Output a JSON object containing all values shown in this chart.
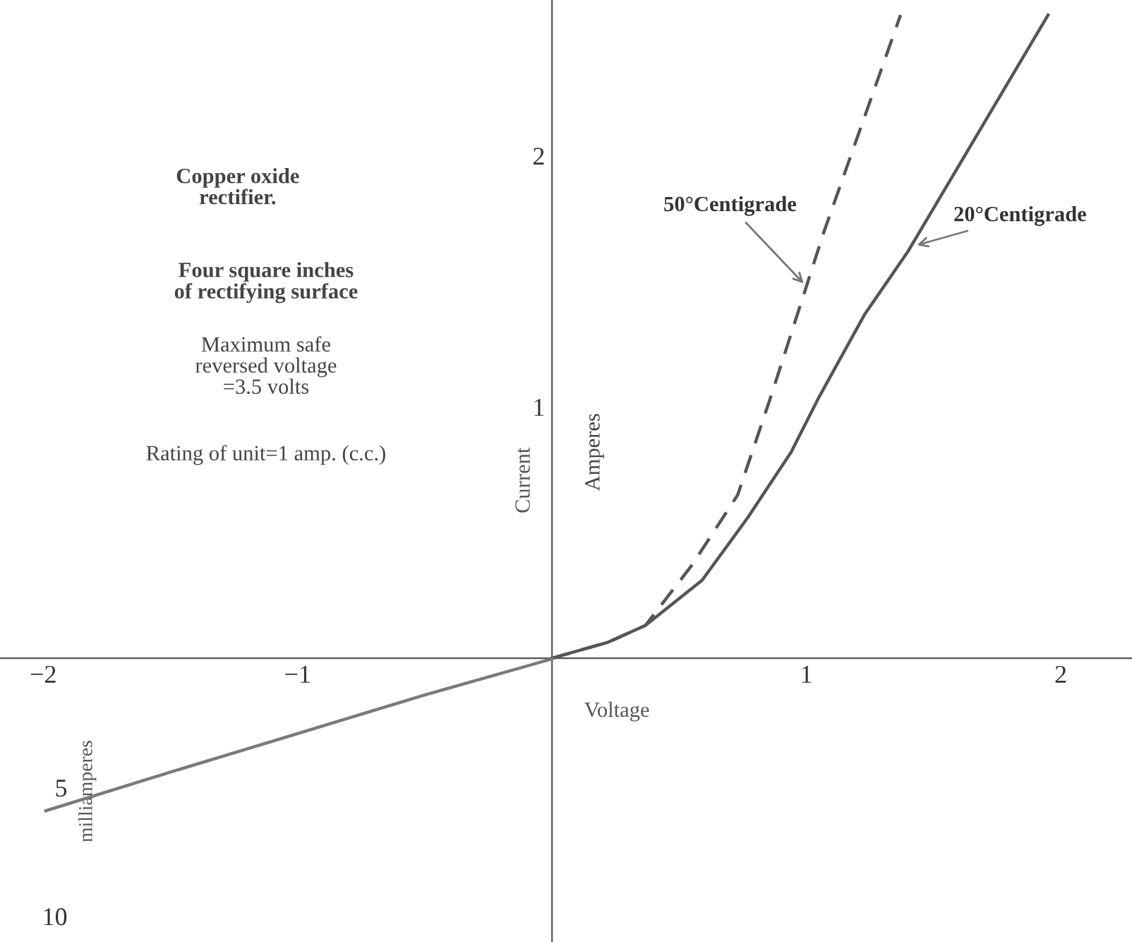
{
  "chart_data": {
    "type": "line",
    "xlabel": "Voltage",
    "ylabel": "Current",
    "y2label": "milliamperes",
    "annotations": [
      "Amperes",
      "Copper oxide\nrectifier.",
      "Four square inches\nof rectifying surface",
      "Maximum safe\nreversed voltage\n=3.5 volts",
      "Rating of unit=1 amp. (c.c.)"
    ],
    "xlim": [
      -2.17,
      2.28
    ],
    "xticks": [
      {
        "value": -2,
        "label": "−2"
      },
      {
        "value": -1,
        "label": "−1"
      },
      1,
      2
    ],
    "ylim": [
      -1.13,
      2.62
    ],
    "yticks": [
      1,
      2
    ],
    "y2lim": [
      11.0,
      -25.6
    ],
    "y2ticks": [
      5,
      10
    ],
    "grid": false,
    "legend": false,
    "marker": "none",
    "series": [
      {
        "name": "50°Centigrade",
        "color": "#555555",
        "line_style": "dashed",
        "x": [
          0,
          0.217,
          0.367,
          0.55,
          0.73,
          0.86,
          1.07,
          1.37
        ],
        "values": [
          0,
          0.062,
          0.13,
          0.37,
          0.65,
          1.04,
          1.7,
          2.56
        ]
      },
      {
        "name": "20°Centigrade",
        "color": "#555555",
        "line_style": "solid",
        "x": [
          0,
          0.217,
          0.367,
          0.59,
          0.77,
          0.94,
          1.05,
          1.23,
          1.4,
          1.95
        ],
        "values": [
          0,
          0.062,
          0.13,
          0.31,
          0.56,
          0.82,
          1.04,
          1.37,
          1.62,
          2.56
        ]
      },
      {
        "color": "#7a7a7a",
        "line_style": "solid",
        "axis": "y2",
        "x": [
          -1.99,
          -1.5,
          -1.0,
          -0.5,
          0
        ],
        "values": [
          5.9,
          4.4,
          2.9,
          1.4,
          0
        ]
      }
    ]
  }
}
